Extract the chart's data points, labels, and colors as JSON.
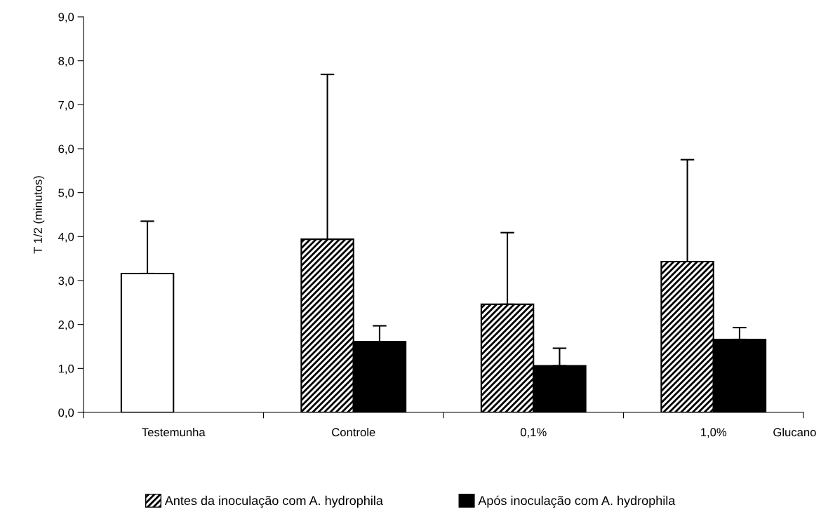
{
  "chart_data": {
    "type": "bar",
    "ylabel": "T 1/2 (minutos)",
    "categories": [
      "Testemunha",
      "Controle",
      "0,1%",
      "1,0%"
    ],
    "series": [
      {
        "color": "#ffffff",
        "values": [
          3.16,
          null,
          null,
          null
        ],
        "errors": [
          [
            3.16,
            4.35
          ],
          null,
          null,
          null
        ]
      },
      {
        "name": "Antes da inoculação com A. hydrophila",
        "color": "#000000",
        "values": [
          null,
          3.94,
          2.46,
          3.43
        ],
        "errors": [
          null,
          [
            3.94,
            7.69
          ],
          [
            2.46,
            4.09
          ],
          [
            3.43,
            5.75
          ]
        ]
      },
      {
        "name": "Após inoculação com A. hydrophila",
        "color": "#000000",
        "values": [
          null,
          1.61,
          1.06,
          1.66
        ],
        "errors": [
          null,
          [
            1.61,
            1.97
          ],
          [
            1.06,
            1.46
          ],
          [
            1.66,
            1.93
          ]
        ]
      }
    ],
    "ylim": [
      0,
      9
    ],
    "yticks": [
      {
        "value": 0,
        "label": "0,0"
      },
      {
        "value": 1,
        "label": "1,0"
      },
      {
        "value": 2,
        "label": "2,0"
      },
      {
        "value": 3,
        "label": "3,0"
      },
      {
        "value": 4,
        "label": "4,0"
      },
      {
        "value": 5,
        "label": "5,0"
      },
      {
        "value": 6,
        "label": "6,0"
      },
      {
        "value": 7,
        "label": "7,0"
      },
      {
        "value": 8,
        "label": "8,0"
      },
      {
        "value": 9,
        "label": "9,0"
      }
    ],
    "annotations": [
      "Glucano"
    ],
    "grid": false,
    "legend": "bottom"
  }
}
